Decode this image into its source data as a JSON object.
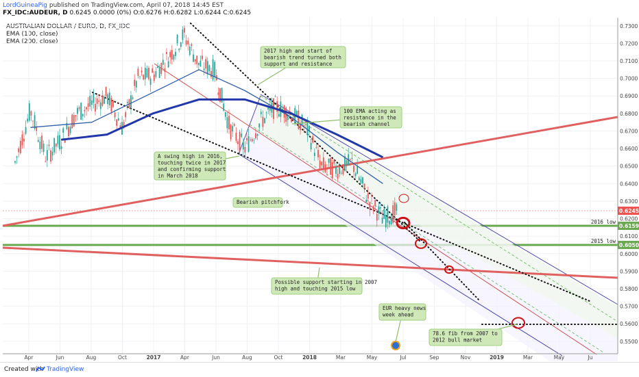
{
  "header": {
    "user": "LordGuineaPig",
    "published": "published on TradingView.com, April 07, 2018 14:45 EST",
    "symbol": "FX_IDC:AUDEUR, D",
    "quote": "0.6245 0.0000 (0%) O:0.6276 H:0.6282 L:0.6244 C:0.6245"
  },
  "legend": {
    "title": "AUSTRALIAN DOLLAR / EURO, D, FX_IDC",
    "ema100": "EMA (100, close)",
    "ema200": "EMA (200, close)"
  },
  "footer": {
    "created": "Created with",
    "brand": "TradingView"
  },
  "colors": {
    "up": "#26a69a",
    "down": "#ef5350",
    "ema100": "#2e5fa8",
    "ema200": "#2238a8",
    "trend": "#e06060",
    "level": "#6aa84f",
    "note_bg": "#cfe8b8",
    "price_tag": "#ef5350",
    "level_tag": "#6aa84f"
  },
  "chart_data": {
    "type": "line",
    "title": "AUSTRALIAN DOLLAR / EURO, D, FX_IDC",
    "ylim": [
      0.545,
      0.735
    ],
    "ytick_labels": [
      "0.7300",
      "0.7200",
      "0.7100",
      "0.7000",
      "0.6900",
      "0.6800",
      "0.6700",
      "0.6600",
      "0.6500",
      "0.6400",
      "0.6300",
      "0.6200",
      "0.6100",
      "0.6000",
      "0.5900",
      "0.5800",
      "0.5700",
      "0.5600",
      "0.5500"
    ],
    "xtick_labels": [
      "Apr",
      "Jun",
      "Aug",
      "Oct",
      "2017",
      "Apr",
      "Jun",
      "Aug",
      "Oct",
      "2018",
      "Mar",
      "May",
      "Jul",
      "Sep",
      "Nov",
      "2019",
      "Mar",
      "May",
      "Ju"
    ],
    "grid": true,
    "price_series": {
      "name": "AUDEUR",
      "x": [
        "2016-03",
        "2016-04",
        "2016-05",
        "2016-06",
        "2016-07",
        "2016-08",
        "2016-09",
        "2016-10",
        "2016-11",
        "2016-12",
        "2017-01",
        "2017-02",
        "2017-03",
        "2017-04",
        "2017-05",
        "2017-06",
        "2017-07",
        "2017-08",
        "2017-09",
        "2017-10",
        "2017-11",
        "2017-12",
        "2018-01",
        "2018-02",
        "2018-03",
        "2018-04"
      ],
      "y": [
        0.652,
        0.682,
        0.655,
        0.665,
        0.68,
        0.685,
        0.69,
        0.672,
        0.7,
        0.702,
        0.712,
        0.725,
        0.708,
        0.705,
        0.672,
        0.66,
        0.675,
        0.684,
        0.68,
        0.672,
        0.65,
        0.648,
        0.652,
        0.632,
        0.62,
        0.6245
      ]
    },
    "ema_100": {
      "name": "EMA (100, close)",
      "x": [
        "2016-04",
        "2016-08",
        "2016-12",
        "2017-03",
        "2017-06",
        "2017-09",
        "2017-12",
        "2018-03"
      ],
      "y": [
        0.672,
        0.675,
        0.692,
        0.705,
        0.693,
        0.678,
        0.658,
        0.64
      ]
    },
    "ema_200": {
      "name": "EMA (200, close)",
      "x": [
        "2016-06",
        "2016-09",
        "2016-12",
        "2017-03",
        "2017-06",
        "2017-09",
        "2017-12",
        "2018-03"
      ],
      "y": [
        0.665,
        0.668,
        0.68,
        0.688,
        0.688,
        0.68,
        0.668,
        0.655
      ]
    },
    "levels": [
      {
        "label": "2016 low",
        "value": 0.6159
      },
      {
        "label": "2015 low",
        "value": 0.605
      }
    ],
    "price_tags": [
      {
        "text": "0.6245",
        "value": 0.6245
      },
      {
        "text": "0.6159",
        "value": 0.6159
      },
      {
        "text": "0.6050",
        "value": 0.605
      }
    ],
    "annotations": [
      {
        "lines": [
          "2017 high and start of",
          "bearish trend turned both",
          "support and resistance"
        ]
      },
      {
        "lines": [
          "100 EMA acting as",
          "resistance in the",
          "bearish channel"
        ]
      },
      {
        "lines": [
          "A swing high in 2016,",
          "touching twice in 2017",
          "and confirming support",
          "in March 2018"
        ]
      },
      {
        "lines": [
          "Bearish pitchfork"
        ]
      },
      {
        "lines": [
          "Possible support starting in 2007",
          "high and touching 2015 low"
        ]
      },
      {
        "lines": [
          "EUR heavy news",
          "week ahead"
        ]
      },
      {
        "lines": [
          "78.6 fib from 2007 to",
          "2012 bull market"
        ]
      }
    ]
  }
}
